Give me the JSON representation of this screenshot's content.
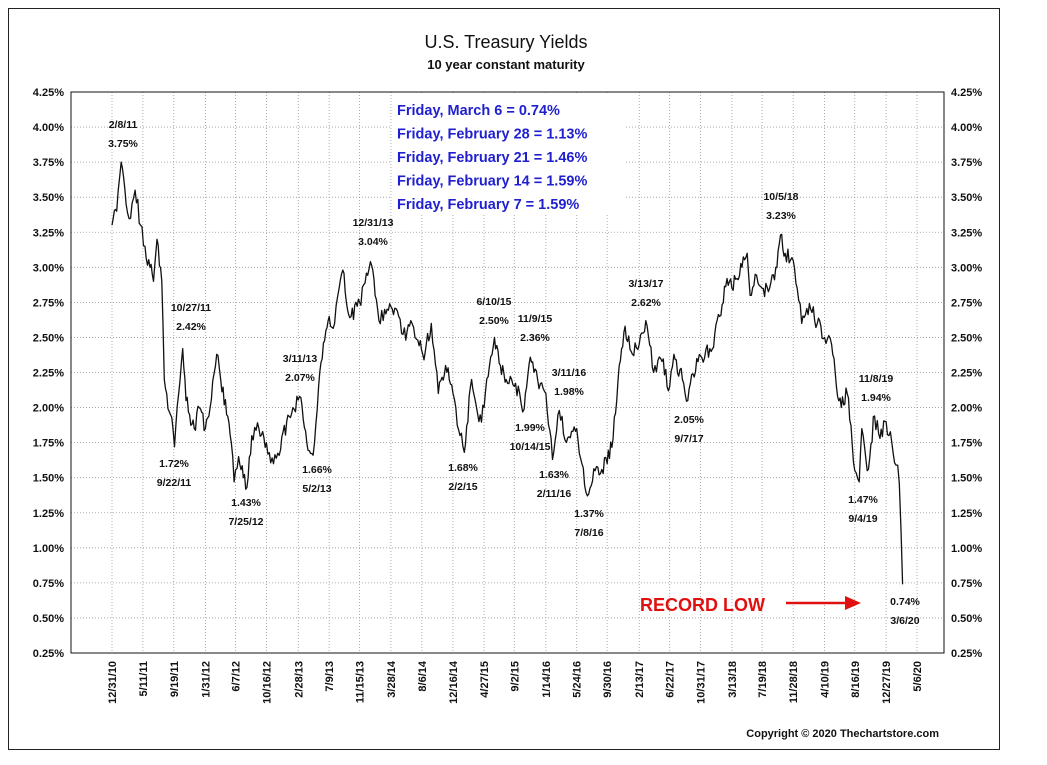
{
  "chart_data": {
    "type": "line",
    "title": "U.S. Treasury Yields",
    "subtitle": "10 year constant maturity",
    "xlabel": "",
    "ylabel": "",
    "ylim": [
      0.25,
      4.25
    ],
    "y_ticks": [
      "0.25%",
      "0.50%",
      "0.75%",
      "1.00%",
      "1.25%",
      "1.50%",
      "1.75%",
      "2.00%",
      "2.25%",
      "2.50%",
      "2.75%",
      "3.00%",
      "3.25%",
      "3.50%",
      "3.75%",
      "4.00%",
      "4.25%"
    ],
    "x_ticks": [
      "12/31/10",
      "5/11/11",
      "9/19/11",
      "1/31/12",
      "6/7/12",
      "10/16/12",
      "2/28/13",
      "7/9/13",
      "11/15/13",
      "3/28/14",
      "8/6/14",
      "12/16/14",
      "4/27/15",
      "9/2/15",
      "1/14/16",
      "5/24/16",
      "9/30/16",
      "2/13/17",
      "6/22/17",
      "10/31/17",
      "3/13/18",
      "7/19/18",
      "11/28/18",
      "4/10/19",
      "8/16/19",
      "12/27/19",
      "5/6/20"
    ],
    "grid": true,
    "series": [
      {
        "values": [
          {
            "x": "12/31/10",
            "y": 3.3
          },
          {
            "x": "1/20/11",
            "y": 3.4
          },
          {
            "x": "2/8/11",
            "y": 3.75
          },
          {
            "x": "3/1/11",
            "y": 3.45
          },
          {
            "x": "3/20/11",
            "y": 3.35
          },
          {
            "x": "4/8/11",
            "y": 3.55
          },
          {
            "x": "5/1/11",
            "y": 3.3
          },
          {
            "x": "5/20/11",
            "y": 3.15
          },
          {
            "x": "6/10/11",
            "y": 3.0
          },
          {
            "x": "6/25/11",
            "y": 2.9
          },
          {
            "x": "7/10/11",
            "y": 3.2
          },
          {
            "x": "7/30/11",
            "y": 2.9
          },
          {
            "x": "8/10/11",
            "y": 2.2
          },
          {
            "x": "8/20/11",
            "y": 2.1
          },
          {
            "x": "9/5/11",
            "y": 1.95
          },
          {
            "x": "9/22/11",
            "y": 1.72
          },
          {
            "x": "10/10/11",
            "y": 2.1
          },
          {
            "x": "10/27/11",
            "y": 2.42
          },
          {
            "x": "11/10/11",
            "y": 2.05
          },
          {
            "x": "11/25/11",
            "y": 1.95
          },
          {
            "x": "12/15/11",
            "y": 1.85
          },
          {
            "x": "1/5/12",
            "y": 2.0
          },
          {
            "x": "1/31/12",
            "y": 1.85
          },
          {
            "x": "2/20/12",
            "y": 2.0
          },
          {
            "x": "3/19/12",
            "y": 2.38
          },
          {
            "x": "4/5/12",
            "y": 2.2
          },
          {
            "x": "4/30/12",
            "y": 1.95
          },
          {
            "x": "5/20/12",
            "y": 1.75
          },
          {
            "x": "6/1/12",
            "y": 1.47
          },
          {
            "x": "6/20/12",
            "y": 1.65
          },
          {
            "x": "7/10/12",
            "y": 1.5
          },
          {
            "x": "7/25/12",
            "y": 1.43
          },
          {
            "x": "8/15/12",
            "y": 1.8
          },
          {
            "x": "9/14/12",
            "y": 1.85
          },
          {
            "x": "10/16/12",
            "y": 1.75
          },
          {
            "x": "11/15/12",
            "y": 1.6
          },
          {
            "x": "12/15/12",
            "y": 1.7
          },
          {
            "x": "1/10/13",
            "y": 1.9
          },
          {
            "x": "2/5/13",
            "y": 2.0
          },
          {
            "x": "3/11/13",
            "y": 2.07
          },
          {
            "x": "4/5/13",
            "y": 1.75
          },
          {
            "x": "5/2/13",
            "y": 1.66
          },
          {
            "x": "5/25/13",
            "y": 2.15
          },
          {
            "x": "6/25/13",
            "y": 2.55
          },
          {
            "x": "7/9/13",
            "y": 2.65
          },
          {
            "x": "8/1/13",
            "y": 2.6
          },
          {
            "x": "8/20/13",
            "y": 2.85
          },
          {
            "x": "9/5/13",
            "y": 2.98
          },
          {
            "x": "9/20/13",
            "y": 2.75
          },
          {
            "x": "10/10/13",
            "y": 2.65
          },
          {
            "x": "11/15/13",
            "y": 2.75
          },
          {
            "x": "12/31/13",
            "y": 3.04
          },
          {
            "x": "1/20/14",
            "y": 2.8
          },
          {
            "x": "2/5/14",
            "y": 2.62
          },
          {
            "x": "3/1/14",
            "y": 2.7
          },
          {
            "x": "3/28/14",
            "y": 2.72
          },
          {
            "x": "4/30/14",
            "y": 2.65
          },
          {
            "x": "5/30/14",
            "y": 2.48
          },
          {
            "x": "6/20/14",
            "y": 2.62
          },
          {
            "x": "7/20/14",
            "y": 2.48
          },
          {
            "x": "8/15/14",
            "y": 2.34
          },
          {
            "x": "9/15/14",
            "y": 2.6
          },
          {
            "x": "10/15/14",
            "y": 2.1
          },
          {
            "x": "11/15/14",
            "y": 2.3
          },
          {
            "x": "12/16/14",
            "y": 2.1
          },
          {
            "x": "1/15/15",
            "y": 1.8
          },
          {
            "x": "2/2/15",
            "y": 1.68
          },
          {
            "x": "3/5/15",
            "y": 2.2
          },
          {
            "x": "4/5/15",
            "y": 1.9
          },
          {
            "x": "4/27/15",
            "y": 2.0
          },
          {
            "x": "5/20/15",
            "y": 2.3
          },
          {
            "x": "6/10/15",
            "y": 2.5
          },
          {
            "x": "7/5/15",
            "y": 2.3
          },
          {
            "x": "7/30/15",
            "y": 2.2
          },
          {
            "x": "9/2/15",
            "y": 2.15
          },
          {
            "x": "9/25/15",
            "y": 2.1
          },
          {
            "x": "10/14/15",
            "y": 1.99
          },
          {
            "x": "11/9/15",
            "y": 2.36
          },
          {
            "x": "12/10/15",
            "y": 2.2
          },
          {
            "x": "1/14/16",
            "y": 2.1
          },
          {
            "x": "2/11/16",
            "y": 1.63
          },
          {
            "x": "3/11/16",
            "y": 1.98
          },
          {
            "x": "4/10/16",
            "y": 1.75
          },
          {
            "x": "5/24/16",
            "y": 1.85
          },
          {
            "x": "6/15/16",
            "y": 1.6
          },
          {
            "x": "7/8/16",
            "y": 1.37
          },
          {
            "x": "8/10/16",
            "y": 1.55
          },
          {
            "x": "9/30/16",
            "y": 1.6
          },
          {
            "x": "10/25/16",
            "y": 1.78
          },
          {
            "x": "11/20/16",
            "y": 2.3
          },
          {
            "x": "12/15/16",
            "y": 2.58
          },
          {
            "x": "1/15/17",
            "y": 2.38
          },
          {
            "x": "2/13/17",
            "y": 2.45
          },
          {
            "x": "3/13/17",
            "y": 2.62
          },
          {
            "x": "4/15/17",
            "y": 2.25
          },
          {
            "x": "5/15/17",
            "y": 2.35
          },
          {
            "x": "6/22/17",
            "y": 2.15
          },
          {
            "x": "7/10/17",
            "y": 2.38
          },
          {
            "x": "8/15/17",
            "y": 2.2
          },
          {
            "x": "9/7/17",
            "y": 2.05
          },
          {
            "x": "10/15/17",
            "y": 2.35
          },
          {
            "x": "10/31/17",
            "y": 2.37
          },
          {
            "x": "12/15/17",
            "y": 2.4
          },
          {
            "x": "1/20/18",
            "y": 2.65
          },
          {
            "x": "2/20/18",
            "y": 2.92
          },
          {
            "x": "3/13/18",
            "y": 2.85
          },
          {
            "x": "4/25/18",
            "y": 3.0
          },
          {
            "x": "5/17/18",
            "y": 3.1
          },
          {
            "x": "5/29/18",
            "y": 2.8
          },
          {
            "x": "6/20/18",
            "y": 2.95
          },
          {
            "x": "7/19/18",
            "y": 2.85
          },
          {
            "x": "8/20/18",
            "y": 2.85
          },
          {
            "x": "9/15/18",
            "y": 3.0
          },
          {
            "x": "10/5/18",
            "y": 3.23
          },
          {
            "x": "10/25/18",
            "y": 3.1
          },
          {
            "x": "11/28/18",
            "y": 3.05
          },
          {
            "x": "12/15/18",
            "y": 2.85
          },
          {
            "x": "1/3/19",
            "y": 2.6
          },
          {
            "x": "2/10/19",
            "y": 2.7
          },
          {
            "x": "3/10/19",
            "y": 2.6
          },
          {
            "x": "4/10/19",
            "y": 2.5
          },
          {
            "x": "5/10/19",
            "y": 2.45
          },
          {
            "x": "5/30/19",
            "y": 2.15
          },
          {
            "x": "6/20/19",
            "y": 2.0
          },
          {
            "x": "7/15/19",
            "y": 2.1
          },
          {
            "x": "8/16/19",
            "y": 1.55
          },
          {
            "x": "9/4/19",
            "y": 1.47
          },
          {
            "x": "9/15/19",
            "y": 1.85
          },
          {
            "x": "10/8/19",
            "y": 1.55
          },
          {
            "x": "11/8/19",
            "y": 1.94
          },
          {
            "x": "12/1/19",
            "y": 1.78
          },
          {
            "x": "12/27/19",
            "y": 1.9
          },
          {
            "x": "1/20/20",
            "y": 1.75
          },
          {
            "x": "2/7/20",
            "y": 1.59
          },
          {
            "x": "2/14/20",
            "y": 1.59
          },
          {
            "x": "2/21/20",
            "y": 1.46
          },
          {
            "x": "2/28/20",
            "y": 1.13
          },
          {
            "x": "3/6/20",
            "y": 0.74
          }
        ]
      }
    ],
    "annotations": [
      {
        "date": "2/8/11",
        "value": "3.75%"
      },
      {
        "date": "9/22/11",
        "value": "1.72%"
      },
      {
        "date": "10/27/11",
        "value": "2.42%"
      },
      {
        "date": "7/25/12",
        "value": "1.43%"
      },
      {
        "date": "3/11/13",
        "value": "2.07%"
      },
      {
        "date": "5/2/13",
        "value": "1.66%"
      },
      {
        "date": "12/31/13",
        "value": "3.04%"
      },
      {
        "date": "2/2/15",
        "value": "1.68%"
      },
      {
        "date": "6/10/15",
        "value": "2.50%"
      },
      {
        "date": "10/14/15",
        "value": "1.99%"
      },
      {
        "date": "11/9/15",
        "value": "2.36%"
      },
      {
        "date": "2/11/16",
        "value": "1.63%"
      },
      {
        "date": "3/11/16",
        "value": "1.98%"
      },
      {
        "date": "7/8/16",
        "value": "1.37%"
      },
      {
        "date": "3/13/17",
        "value": "2.62%"
      },
      {
        "date": "9/7/17",
        "value": "2.05%"
      },
      {
        "date": "10/5/18",
        "value": "3.23%"
      },
      {
        "date": "9/4/19",
        "value": "1.47%"
      },
      {
        "date": "11/8/19",
        "value": "1.94%"
      },
      {
        "date": "3/6/20",
        "value": "0.74%"
      }
    ],
    "info_box": [
      "Friday, March 6 = 0.74%",
      "Friday, February 28 = 1.13%",
      "Friday, February 21 = 1.46%",
      "Friday, February 14 = 1.59%",
      "Friday, February 7 = 1.59%"
    ],
    "record_low_label": "RECORD LOW",
    "copyright": "Copyright © 2020 Thechartstore.com",
    "colors": {
      "line": "#111111",
      "grid": "#9a9a9a",
      "info_text": "#1f1fd0",
      "record_low": "#e01010"
    }
  }
}
